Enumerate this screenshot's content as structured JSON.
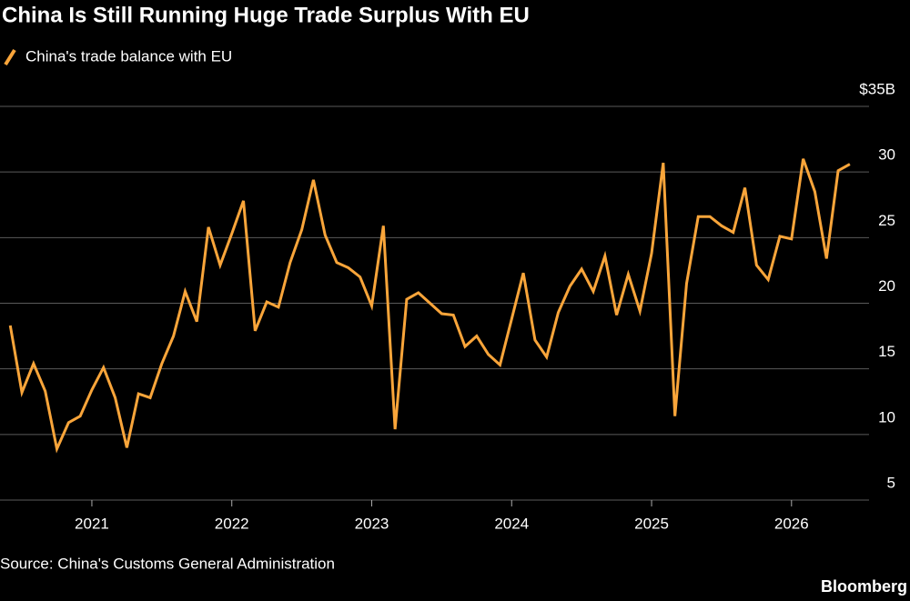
{
  "chart_data": {
    "type": "line",
    "title": "China Is Still Running Huge Trade Surplus With EU",
    "source": "Source: China's Customs General Administration",
    "brand": "Bloomberg",
    "x": [
      2020.4167,
      2020.5,
      2020.5833,
      2020.6667,
      2020.75,
      2020.8333,
      2020.9167,
      2021.0,
      2021.0833,
      2021.1667,
      2021.25,
      2021.3333,
      2021.4167,
      2021.5,
      2021.5833,
      2021.6667,
      2021.75,
      2021.8333,
      2021.9167,
      2022.0,
      2022.0833,
      2022.1667,
      2022.25,
      2022.3333,
      2022.4167,
      2022.5,
      2022.5833,
      2022.6667,
      2022.75,
      2022.8333,
      2022.9167,
      2023.0,
      2023.0833,
      2023.1667,
      2023.25,
      2023.3333,
      2023.4167,
      2023.5,
      2023.5833,
      2023.6667,
      2023.75,
      2023.8333,
      2023.9167,
      2024.0,
      2024.0833,
      2024.1667,
      2024.25,
      2024.3333,
      2024.4167,
      2024.5,
      2024.5833,
      2024.6667,
      2024.75,
      2024.8333,
      2024.9167,
      2025.0,
      2025.0833,
      2025.1667,
      2025.25,
      2025.3333,
      2025.4167,
      2025.5,
      2025.5833,
      2025.6667,
      2025.75,
      2025.8333,
      2025.9167,
      2026.0,
      2026.0833,
      2026.1667,
      2026.25,
      2026.3333,
      2026.4167
    ],
    "series": [
      {
        "name": "China's trade balance with EU",
        "color": "#f9a53a",
        "values": [
          18.3,
          13.2,
          15.4,
          13.3,
          8.9,
          10.9,
          11.4,
          13.4,
          15.1,
          12.8,
          9.0,
          13.1,
          12.8,
          15.4,
          17.5,
          20.9,
          18.6,
          25.8,
          22.9,
          25.3,
          27.8,
          17.9,
          20.1,
          19.7,
          23.1,
          25.6,
          29.4,
          25.2,
          23.1,
          22.7,
          22.0,
          19.8,
          25.9,
          10.4,
          20.3,
          20.8,
          20.0,
          19.2,
          19.1,
          16.7,
          17.5,
          16.1,
          15.3,
          18.8,
          22.3,
          17.2,
          15.9,
          19.3,
          21.3,
          22.6,
          20.9,
          23.6,
          19.1,
          22.2,
          19.4,
          23.8,
          30.7,
          11.4,
          21.5,
          26.6,
          26.6,
          25.9,
          25.4,
          28.8,
          22.9,
          21.8,
          25.1,
          24.9,
          31.0,
          28.5,
          23.4,
          30.1,
          30.6
        ]
      }
    ],
    "xlim": [
      2020.35,
      2026.45
    ],
    "xticks": [
      2021,
      2022,
      2023,
      2024,
      2025,
      2026
    ],
    "ylim": [
      5,
      35
    ],
    "yticks": [
      5,
      10,
      15,
      20,
      25,
      30,
      {
        "value": 35,
        "label": "$35B"
      }
    ],
    "grid": true
  }
}
